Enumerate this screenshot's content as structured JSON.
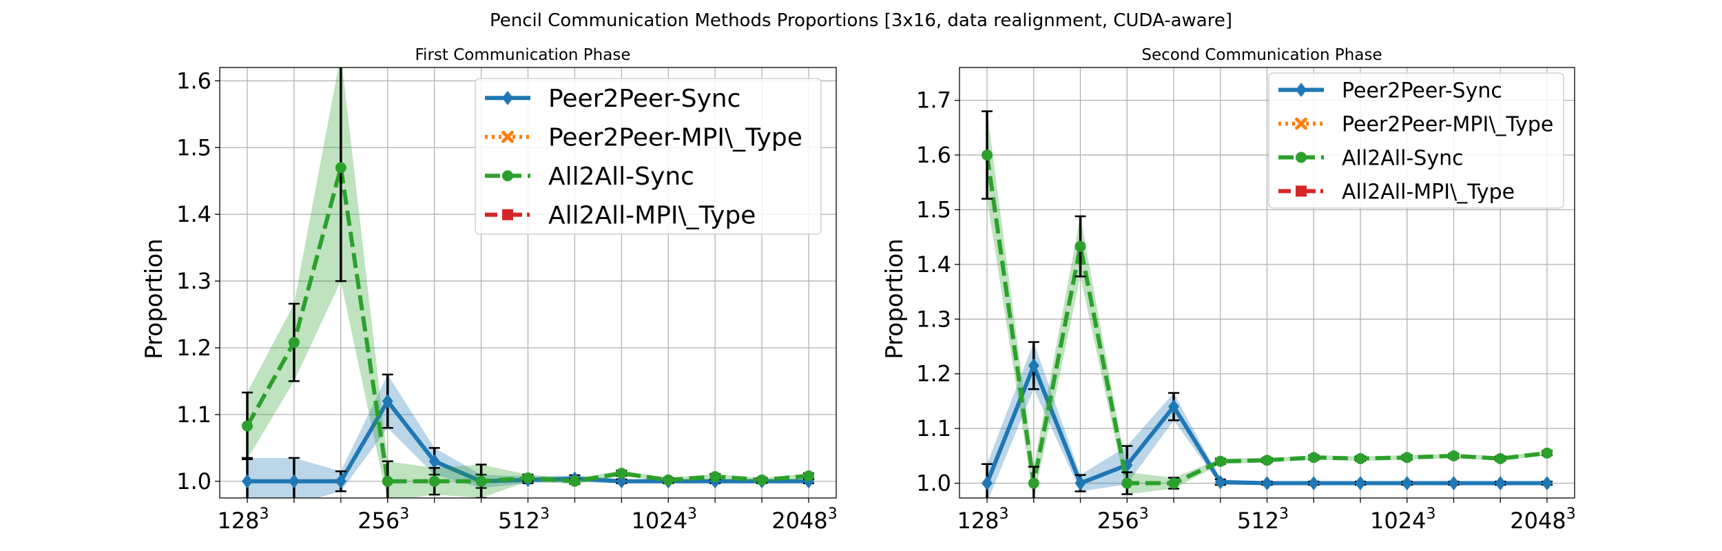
{
  "title": "Pencil Communication Methods Proportions [3x16, data realignment, CUDA-aware]",
  "chart_data": [
    {
      "type": "line",
      "title": "First Communication Phase",
      "ylabel": "Proportion",
      "x_categories": [
        "128³",
        "",
        "",
        "256³",
        "",
        "",
        "512³",
        "",
        "",
        "1024³",
        "",
        "",
        "2048³"
      ],
      "xtick_labels": [
        "128",
        "256",
        "512",
        "1024",
        "2048"
      ],
      "xtick_exponent": "3",
      "ylim": [
        0.975,
        1.62
      ],
      "yticks": [
        1.0,
        1.1,
        1.2,
        1.3,
        1.4,
        1.5,
        1.6
      ],
      "grid": true,
      "legend_position": "top-right",
      "series": [
        {
          "name": "Peer2Peer-Sync",
          "color": "#1f77b4",
          "dash": "solid",
          "marker": "diamond",
          "y": [
            1.0,
            1.0,
            1.0,
            1.12,
            1.03,
            1.0,
            1.002,
            1.004,
            1.0,
            1.0,
            1.0,
            1.0,
            1.0
          ],
          "err": [
            0.035,
            0.035,
            0.015,
            0.04,
            0.02,
            0.01,
            0.005,
            0.005,
            0.003,
            0.003,
            0.003,
            0.003,
            0.003
          ]
        },
        {
          "name": "Peer2Peer-MPI\\_Type",
          "color": "#ff7f0e",
          "dash": "dotted",
          "marker": "x",
          "y": []
        },
        {
          "name": "All2All-Sync",
          "color": "#2ca02c",
          "dash": "dashed",
          "marker": "circle",
          "y": [
            1.083,
            1.208,
            1.47,
            1.0,
            1.0,
            1.0,
            1.005,
            1.0,
            1.012,
            1.002,
            1.007,
            1.002,
            1.008
          ],
          "err": [
            0.05,
            0.058,
            0.17,
            0.03,
            0.02,
            0.025,
            0.005,
            0.004,
            0.004,
            0.003,
            0.004,
            0.003,
            0.004
          ]
        },
        {
          "name": "All2All-MPI\\_Type",
          "color": "#d62728",
          "dash": "dashdot",
          "marker": "square",
          "y": []
        }
      ]
    },
    {
      "type": "line",
      "title": "Second Communication Phase",
      "ylabel": "Proportion",
      "x_categories": [
        "128³",
        "",
        "",
        "256³",
        "",
        "",
        "512³",
        "",
        "",
        "1024³",
        "",
        "",
        "2048³"
      ],
      "xtick_labels": [
        "128",
        "256",
        "512",
        "1024",
        "2048"
      ],
      "xtick_exponent": "3",
      "ylim": [
        0.973,
        1.76
      ],
      "yticks": [
        1.0,
        1.1,
        1.2,
        1.3,
        1.4,
        1.5,
        1.6,
        1.7
      ],
      "grid": true,
      "legend_position": "top-right",
      "series": [
        {
          "name": "Peer2Peer-Sync",
          "color": "#1f77b4",
          "dash": "solid",
          "marker": "diamond",
          "y": [
            1.0,
            1.215,
            1.0,
            1.033,
            1.14,
            1.002,
            1.0,
            1.0,
            1.0,
            1.0,
            1.0,
            1.0,
            1.0
          ],
          "err": [
            0.035,
            0.043,
            0.015,
            0.035,
            0.025,
            0.005,
            0.003,
            0.003,
            0.003,
            0.003,
            0.003,
            0.003,
            0.003
          ]
        },
        {
          "name": "Peer2Peer-MPI\\_Type",
          "color": "#ff7f0e",
          "dash": "dotted",
          "marker": "x",
          "y": []
        },
        {
          "name": "All2All-Sync",
          "color": "#2ca02c",
          "dash": "dashed",
          "marker": "circle",
          "y": [
            1.6,
            1.0,
            1.433,
            1.0,
            1.0,
            1.04,
            1.042,
            1.047,
            1.045,
            1.047,
            1.05,
            1.045,
            1.055
          ],
          "err": [
            0.08,
            0.03,
            0.055,
            0.02,
            0.01,
            0.005,
            0.004,
            0.004,
            0.004,
            0.004,
            0.004,
            0.004,
            0.004
          ]
        },
        {
          "name": "All2All-MPI\\_Type",
          "color": "#d62728",
          "dash": "dashdot",
          "marker": "square",
          "y": []
        }
      ]
    }
  ]
}
